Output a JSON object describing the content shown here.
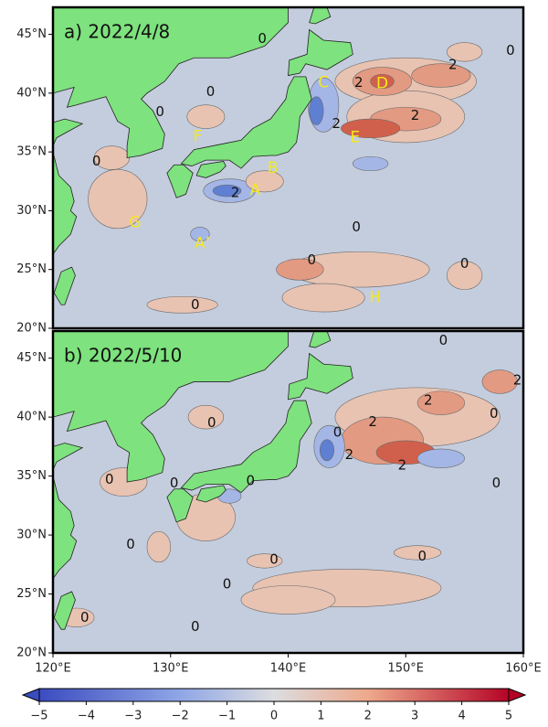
{
  "map": {
    "xlim": [
      120,
      160
    ],
    "ylim": [
      20,
      47.3
    ],
    "x_ticks": [
      {
        "value": 120,
        "label": "120°E"
      },
      {
        "value": 130,
        "label": "130°E"
      },
      {
        "value": 140,
        "label": "140°E"
      },
      {
        "value": 150,
        "label": "150°E"
      },
      {
        "value": 160,
        "label": "160°E"
      }
    ],
    "y_ticks": [
      {
        "value": 20,
        "label": "20°N"
      },
      {
        "value": 25,
        "label": "25°N"
      },
      {
        "value": 30,
        "label": "30°N"
      },
      {
        "value": 35,
        "label": "35°N"
      },
      {
        "value": 40,
        "label": "40°N"
      },
      {
        "value": 45,
        "label": "45°N"
      }
    ],
    "panels": [
      {
        "title": "a) 2022/4/8",
        "region_labels": [
          "A",
          "A’",
          "B",
          "C",
          "D",
          "E",
          "F",
          "G",
          "H"
        ],
        "contour_labels": [
          "0",
          "2",
          "2",
          "2",
          "2",
          "2",
          "0",
          "0",
          "0",
          "0",
          "0",
          "0",
          "0",
          "0"
        ]
      },
      {
        "title": "b) 2022/5/10",
        "contour_labels": [
          "2",
          "2",
          "0",
          "2",
          "2",
          "0",
          "2",
          "0",
          "0",
          "0",
          "0",
          "0",
          "0",
          "0",
          "0",
          "0",
          "0",
          "0",
          "0"
        ]
      }
    ],
    "colorbar": {
      "range": [
        -5,
        5
      ],
      "ticks": [
        {
          "value": -5,
          "label": "−5"
        },
        {
          "value": -4,
          "label": "−4"
        },
        {
          "value": -3,
          "label": "−3"
        },
        {
          "value": -2,
          "label": "−2"
        },
        {
          "value": -1,
          "label": "−1"
        },
        0,
        1,
        2,
        3,
        4,
        5
      ]
    }
  }
}
